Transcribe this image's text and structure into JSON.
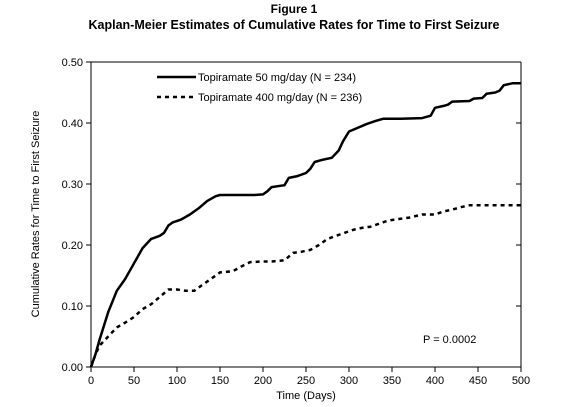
{
  "figure": {
    "label": "Figure 1",
    "title": "Kaplan-Meier Estimates of Cumulative Rates for Time to First Seizure"
  },
  "chart_data": {
    "type": "line",
    "title": "Kaplan-Meier Estimates of Cumulative Rates for Time to First Seizure",
    "xlabel": "Time (Days)",
    "ylabel": "Cumulative Rates for Time to First Seizure",
    "xlim": [
      0,
      500
    ],
    "ylim": [
      0.0,
      0.5
    ],
    "xticks": [
      "0",
      "50",
      "100",
      "150",
      "200",
      "250",
      "300",
      "350",
      "400",
      "450",
      "500"
    ],
    "yticks": [
      "0.00",
      "0.10",
      "0.20",
      "0.30",
      "0.40",
      "0.50"
    ],
    "grid": false,
    "legend_position": "top-left",
    "annotation": "P = 0.0002",
    "series": [
      {
        "name": "Topiramate 50 mg/day (N = 234)",
        "style": "solid",
        "color": "#000000",
        "points": [
          [
            0,
            0.0
          ],
          [
            5,
            0.02
          ],
          [
            10,
            0.045
          ],
          [
            20,
            0.09
          ],
          [
            30,
            0.125
          ],
          [
            40,
            0.145
          ],
          [
            50,
            0.17
          ],
          [
            60,
            0.195
          ],
          [
            70,
            0.21
          ],
          [
            80,
            0.215
          ],
          [
            85,
            0.22
          ],
          [
            90,
            0.232
          ],
          [
            95,
            0.237
          ],
          [
            105,
            0.242
          ],
          [
            115,
            0.25
          ],
          [
            125,
            0.26
          ],
          [
            135,
            0.272
          ],
          [
            145,
            0.28
          ],
          [
            150,
            0.282
          ],
          [
            160,
            0.282
          ],
          [
            190,
            0.282
          ],
          [
            200,
            0.283
          ],
          [
            205,
            0.288
          ],
          [
            210,
            0.295
          ],
          [
            220,
            0.297
          ],
          [
            225,
            0.298
          ],
          [
            230,
            0.31
          ],
          [
            240,
            0.313
          ],
          [
            250,
            0.318
          ],
          [
            255,
            0.325
          ],
          [
            260,
            0.336
          ],
          [
            270,
            0.34
          ],
          [
            280,
            0.343
          ],
          [
            288,
            0.355
          ],
          [
            293,
            0.37
          ],
          [
            300,
            0.386
          ],
          [
            310,
            0.392
          ],
          [
            320,
            0.398
          ],
          [
            330,
            0.403
          ],
          [
            340,
            0.407
          ],
          [
            360,
            0.407
          ],
          [
            385,
            0.408
          ],
          [
            395,
            0.412
          ],
          [
            400,
            0.425
          ],
          [
            410,
            0.428
          ],
          [
            415,
            0.43
          ],
          [
            420,
            0.435
          ],
          [
            440,
            0.436
          ],
          [
            445,
            0.44
          ],
          [
            455,
            0.441
          ],
          [
            460,
            0.448
          ],
          [
            470,
            0.45
          ],
          [
            475,
            0.453
          ],
          [
            480,
            0.462
          ],
          [
            490,
            0.465
          ],
          [
            500,
            0.465
          ]
        ]
      },
      {
        "name": "Topiramate 400 mg/day (N = 236)",
        "style": "dashed",
        "color": "#000000",
        "points": [
          [
            0,
            0.0
          ],
          [
            5,
            0.02
          ],
          [
            10,
            0.035
          ],
          [
            20,
            0.05
          ],
          [
            30,
            0.065
          ],
          [
            40,
            0.073
          ],
          [
            50,
            0.082
          ],
          [
            60,
            0.095
          ],
          [
            70,
            0.103
          ],
          [
            80,
            0.115
          ],
          [
            90,
            0.127
          ],
          [
            100,
            0.127
          ],
          [
            110,
            0.125
          ],
          [
            120,
            0.125
          ],
          [
            130,
            0.135
          ],
          [
            140,
            0.145
          ],
          [
            150,
            0.155
          ],
          [
            165,
            0.157
          ],
          [
            175,
            0.165
          ],
          [
            185,
            0.172
          ],
          [
            200,
            0.173
          ],
          [
            210,
            0.173
          ],
          [
            225,
            0.175
          ],
          [
            235,
            0.187
          ],
          [
            245,
            0.189
          ],
          [
            255,
            0.192
          ],
          [
            265,
            0.2
          ],
          [
            275,
            0.21
          ],
          [
            285,
            0.215
          ],
          [
            295,
            0.22
          ],
          [
            305,
            0.225
          ],
          [
            315,
            0.228
          ],
          [
            325,
            0.23
          ],
          [
            335,
            0.235
          ],
          [
            345,
            0.24
          ],
          [
            360,
            0.243
          ],
          [
            370,
            0.245
          ],
          [
            385,
            0.25
          ],
          [
            400,
            0.25
          ],
          [
            410,
            0.255
          ],
          [
            420,
            0.258
          ],
          [
            430,
            0.262
          ],
          [
            440,
            0.265
          ],
          [
            460,
            0.265
          ],
          [
            480,
            0.265
          ],
          [
            500,
            0.265
          ]
        ]
      }
    ]
  }
}
